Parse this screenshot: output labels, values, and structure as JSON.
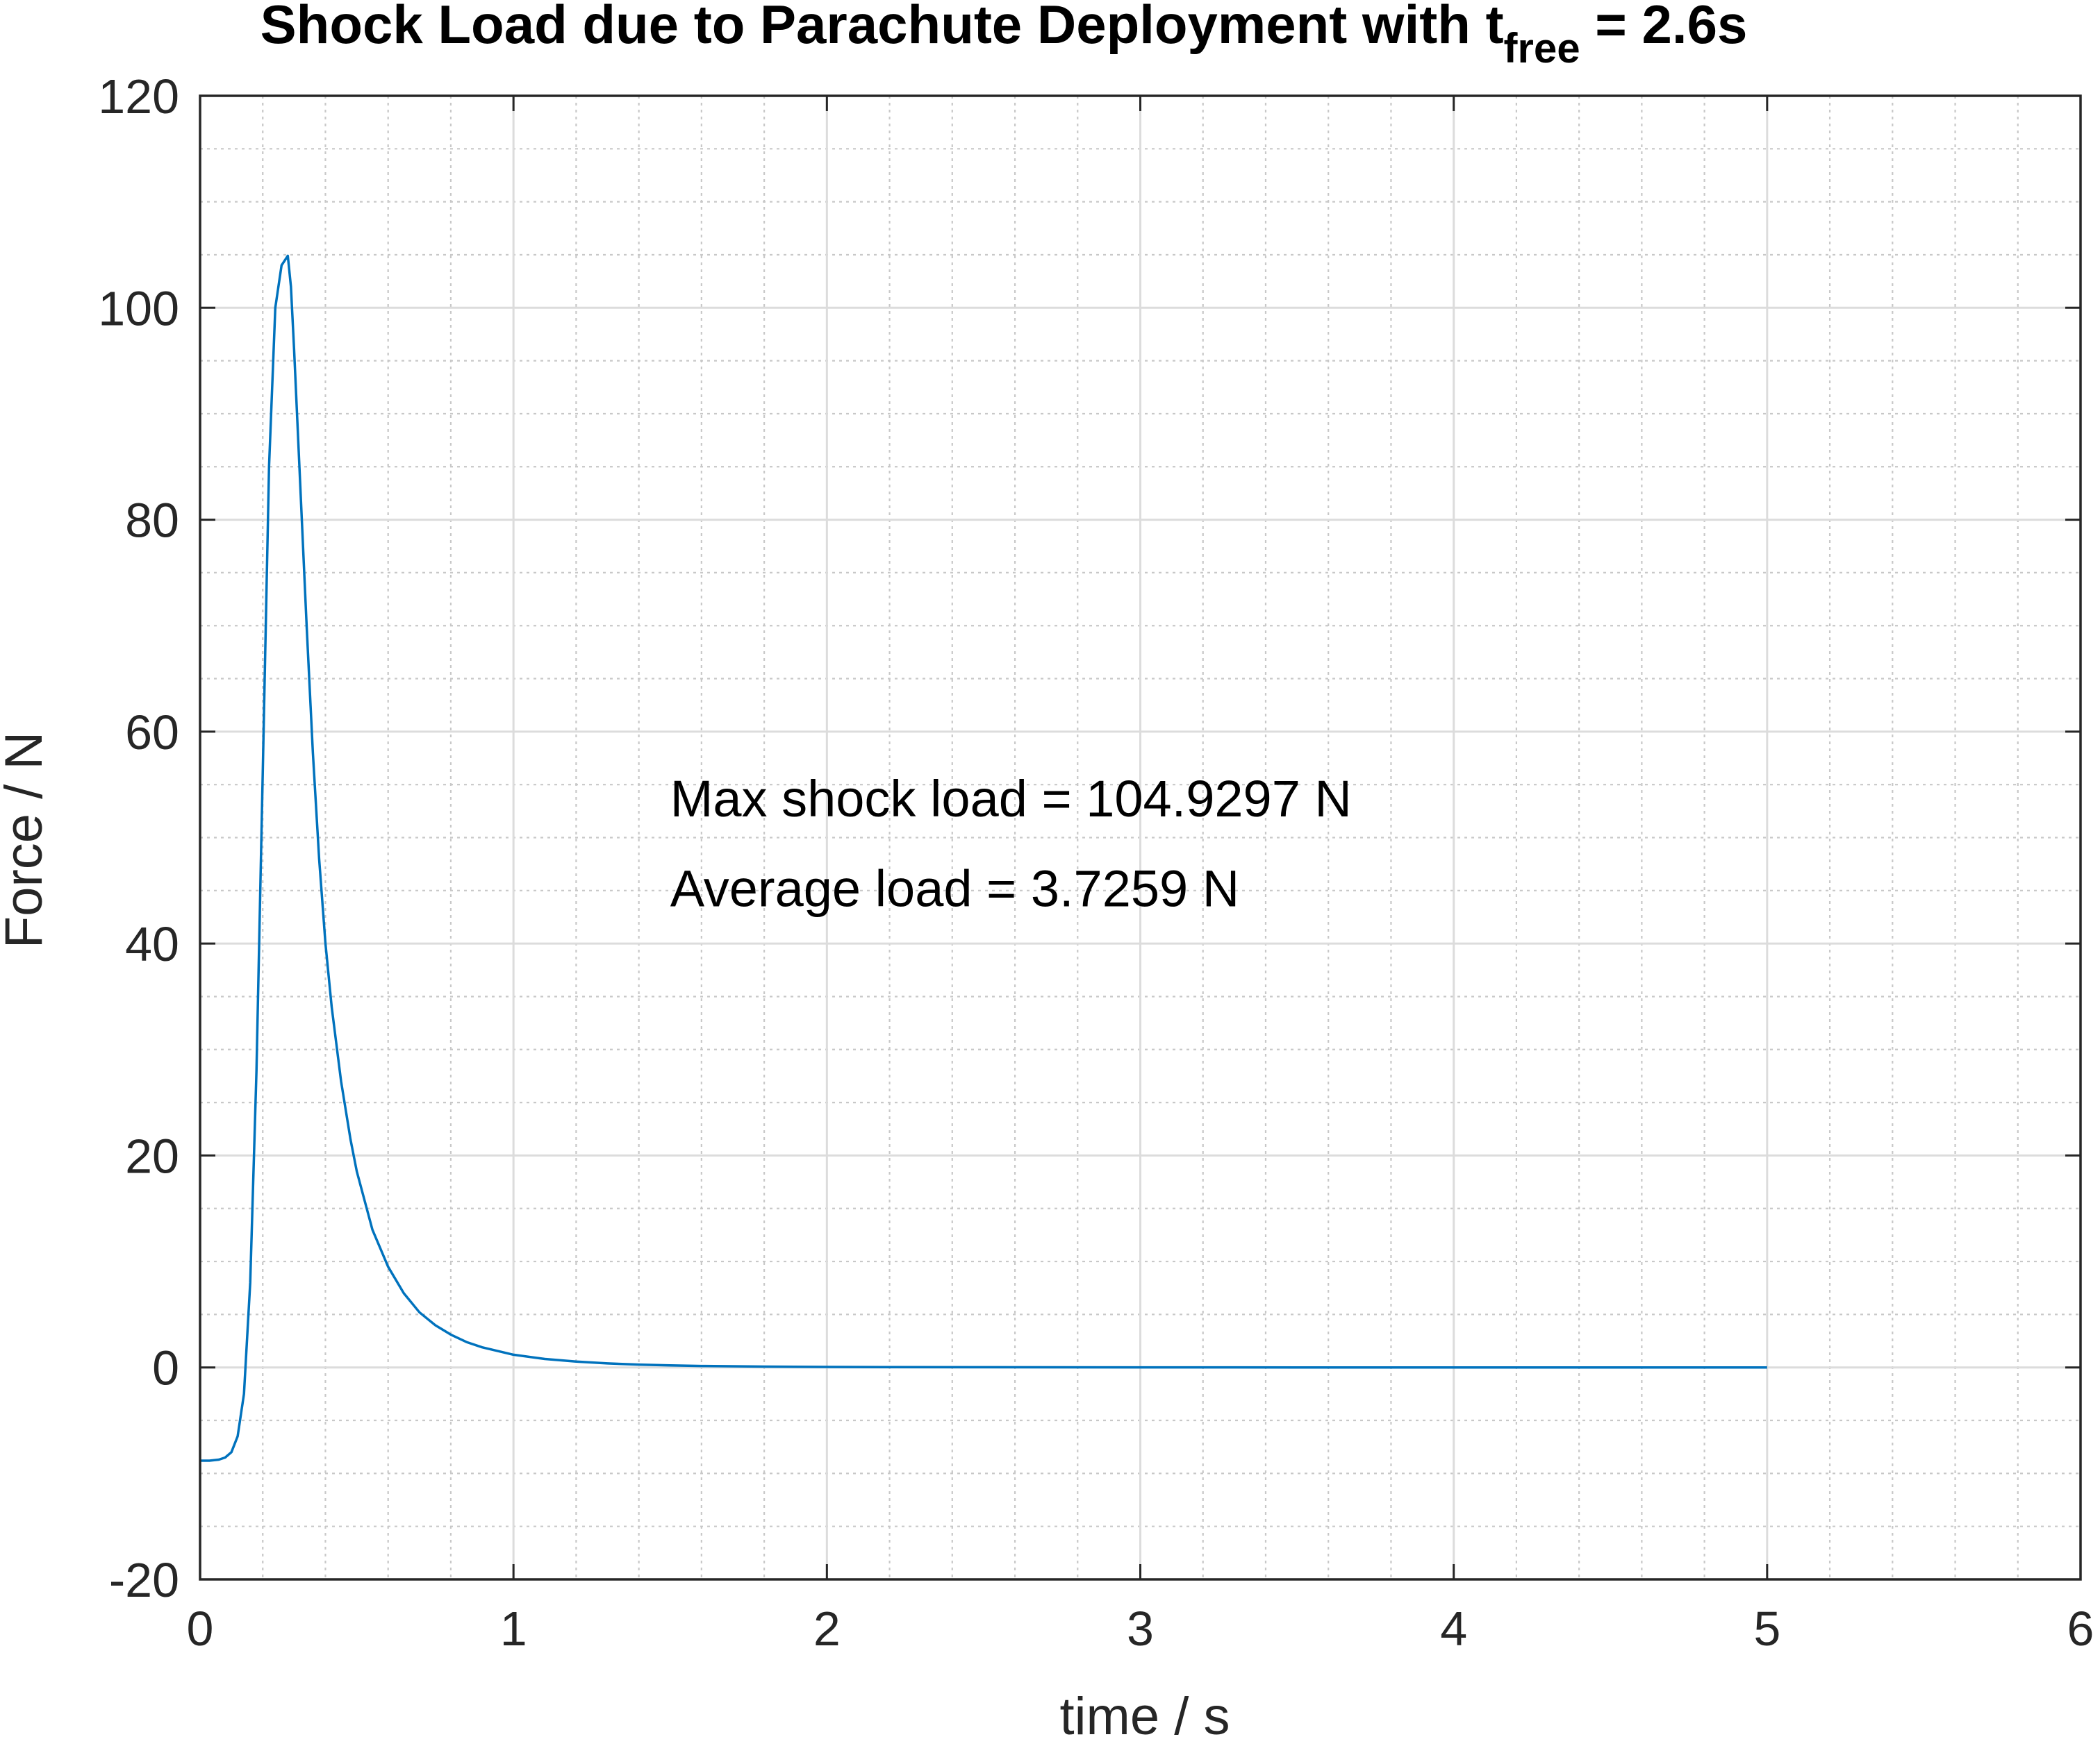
{
  "chart_data": {
    "type": "line",
    "title": {
      "main": "Shock Load due to Parachute Deployment with t",
      "subscript": "free",
      "suffix": " = 2.6s"
    },
    "xlabel": "time / s",
    "ylabel": "Force / N",
    "xlim": [
      0,
      6
    ],
    "ylim": [
      -20,
      120
    ],
    "xticks": [
      0,
      1,
      2,
      3,
      4,
      5,
      6
    ],
    "yticks": [
      -20,
      0,
      20,
      40,
      60,
      80,
      100,
      120
    ],
    "xtick_labels": [
      "0",
      "1",
      "2",
      "3",
      "4",
      "5",
      "6"
    ],
    "ytick_labels": [
      "-20",
      "0",
      "20",
      "40",
      "60",
      "80",
      "100",
      "120"
    ],
    "grid": true,
    "minor_grid": true,
    "annotations": [
      {
        "text": "Max shock load = 104.9297 N",
        "x": 1.5,
        "y": 52
      },
      {
        "text": "Average load = 3.7259 N",
        "x": 1.5,
        "y": 43.5
      }
    ],
    "colors": {
      "series": "#0072BD",
      "axes": "#262626"
    },
    "series": [
      {
        "x": [
          0,
          0.03,
          0.06,
          0.08,
          0.1,
          0.12,
          0.14,
          0.16,
          0.18,
          0.2,
          0.22,
          0.24,
          0.26,
          0.28,
          0.29,
          0.3,
          0.32,
          0.34,
          0.36,
          0.38,
          0.4,
          0.42,
          0.45,
          0.48,
          0.5,
          0.55,
          0.6,
          0.65,
          0.7,
          0.75,
          0.8,
          0.85,
          0.9,
          1.0,
          1.1,
          1.2,
          1.3,
          1.4,
          1.5,
          1.6,
          1.8,
          2.0,
          2.2,
          2.5,
          3.0,
          3.5,
          4.0,
          4.5,
          5.0
        ],
        "y": [
          -8.8,
          -8.8,
          -8.7,
          -8.5,
          -8.0,
          -6.5,
          -2.5,
          8,
          28,
          56,
          85,
          100,
          104,
          104.9,
          102,
          96,
          83,
          70,
          58,
          48,
          40,
          34,
          27,
          21.5,
          18.5,
          13,
          9.5,
          7,
          5.2,
          4.0,
          3.1,
          2.4,
          1.9,
          1.2,
          0.8,
          0.55,
          0.38,
          0.27,
          0.2,
          0.14,
          0.08,
          0.05,
          0.03,
          0.02,
          0.01,
          0.0,
          0.0,
          0.0,
          0.0
        ]
      }
    ]
  }
}
